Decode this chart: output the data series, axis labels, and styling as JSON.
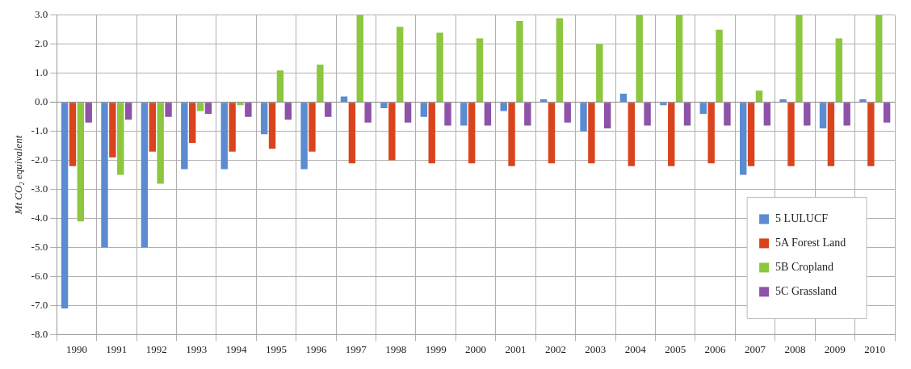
{
  "chart_data": {
    "type": "bar",
    "ylabel": "Mt CO₂ equivalent",
    "categories": [
      "1990",
      "1991",
      "1992",
      "1993",
      "1994",
      "1995",
      "1996",
      "1997",
      "1998",
      "1999",
      "2000",
      "2001",
      "2002",
      "2003",
      "2004",
      "2005",
      "2006",
      "2007",
      "2008",
      "2009",
      "2010"
    ],
    "series": [
      {
        "name": "5 LULUCF",
        "color": "#5b8bd0",
        "values": [
          -7.1,
          -5.0,
          -5.0,
          -2.3,
          -2.3,
          -1.1,
          -2.3,
          0.2,
          -0.2,
          -0.5,
          -0.8,
          -0.3,
          0.1,
          -1.0,
          0.3,
          -0.1,
          -0.4,
          -2.5,
          0.1,
          -0.9,
          0.1
        ]
      },
      {
        "name": "5A Forest Land",
        "color": "#d9441c",
        "values": [
          -2.2,
          -1.9,
          -1.7,
          -1.4,
          -1.7,
          -1.6,
          -1.7,
          -2.1,
          -2.0,
          -2.1,
          -2.1,
          -2.2,
          -2.1,
          -2.1,
          -2.2,
          -2.2,
          -2.1,
          -2.2,
          -2.2,
          -2.2,
          -2.2
        ]
      },
      {
        "name": "5B Cropland",
        "color": "#8dc63f",
        "values": [
          -4.1,
          -2.5,
          -2.8,
          -0.3,
          -0.1,
          1.1,
          1.3,
          3.0,
          2.6,
          2.4,
          2.2,
          2.8,
          2.9,
          2.0,
          3.0,
          3.0,
          2.5,
          0.4,
          3.0,
          2.2,
          3.0
        ]
      },
      {
        "name": "5C Grassland",
        "color": "#8e52a8",
        "values": [
          -0.7,
          -0.6,
          -0.5,
          -0.4,
          -0.5,
          -0.6,
          -0.5,
          -0.7,
          -0.7,
          -0.8,
          -0.8,
          -0.8,
          -0.7,
          -0.9,
          -0.8,
          -0.8,
          -0.8,
          -0.8,
          -0.8,
          -0.8,
          -0.7
        ]
      }
    ],
    "ylim": [
      -8,
      3
    ],
    "yticks": [
      {
        "value": -8,
        "label": "-8.0"
      },
      {
        "value": -7,
        "label": "-7.0"
      },
      {
        "value": -6,
        "label": "-6.0"
      },
      {
        "value": -5,
        "label": "-5.0"
      },
      {
        "value": -4,
        "label": "-4.0"
      },
      {
        "value": -3,
        "label": "-3.0"
      },
      {
        "value": -2,
        "label": "-2.0"
      },
      {
        "value": -1,
        "label": "-1.0"
      },
      {
        "value": 0,
        "label": "0.0"
      },
      {
        "value": 1,
        "label": "1.0"
      },
      {
        "value": 2,
        "label": "2.0"
      },
      {
        "value": 3,
        "label": "3.0"
      }
    ],
    "grid": true,
    "legend": "bottom right"
  }
}
